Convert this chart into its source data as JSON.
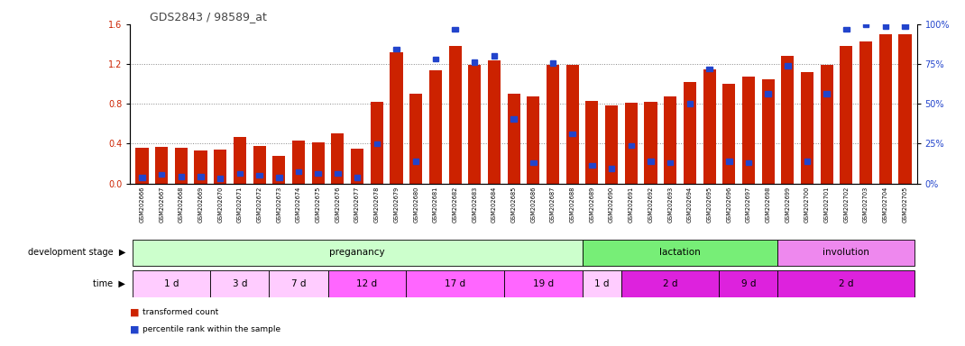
{
  "title": "GDS2843 / 98589_at",
  "samples": [
    "GSM202666",
    "GSM202667",
    "GSM202668",
    "GSM202669",
    "GSM202670",
    "GSM202671",
    "GSM202672",
    "GSM202673",
    "GSM202674",
    "GSM202675",
    "GSM202676",
    "GSM202677",
    "GSM202678",
    "GSM202679",
    "GSM202680",
    "GSM202681",
    "GSM202682",
    "GSM202683",
    "GSM202684",
    "GSM202685",
    "GSM202686",
    "GSM202687",
    "GSM202688",
    "GSM202689",
    "GSM202690",
    "GSM202691",
    "GSM202692",
    "GSM202693",
    "GSM202694",
    "GSM202695",
    "GSM202696",
    "GSM202697",
    "GSM202698",
    "GSM202699",
    "GSM202700",
    "GSM202701",
    "GSM202702",
    "GSM202703",
    "GSM202704",
    "GSM202705"
  ],
  "red_values": [
    0.36,
    0.37,
    0.36,
    0.33,
    0.34,
    0.47,
    0.38,
    0.28,
    0.43,
    0.41,
    0.5,
    0.35,
    0.82,
    1.32,
    0.9,
    1.14,
    1.38,
    1.19,
    1.24,
    0.9,
    0.87,
    1.19,
    1.19,
    0.83,
    0.78,
    0.81,
    0.82,
    0.87,
    1.02,
    1.15,
    1.0,
    1.07,
    1.05,
    1.28,
    1.12,
    1.19,
    1.38,
    1.43,
    1.5,
    1.5
  ],
  "blue_values": [
    0.06,
    0.09,
    0.07,
    0.07,
    0.05,
    0.1,
    0.08,
    0.06,
    0.12,
    0.1,
    0.1,
    0.06,
    0.4,
    1.35,
    0.22,
    1.25,
    1.55,
    1.22,
    1.28,
    0.65,
    0.21,
    1.21,
    0.5,
    0.18,
    0.15,
    0.38,
    0.22,
    0.21,
    0.8,
    1.15,
    0.22,
    0.21,
    0.9,
    1.18,
    0.22,
    0.9,
    1.55,
    1.6,
    1.58,
    1.58
  ],
  "stage_groups": [
    {
      "label": "preganancy",
      "start": 0,
      "end": 23,
      "color": "#ccffcc"
    },
    {
      "label": "lactation",
      "start": 23,
      "end": 33,
      "color": "#77ee77"
    },
    {
      "label": "involution",
      "start": 33,
      "end": 40,
      "color": "#ee88ee"
    }
  ],
  "time_groups": [
    {
      "label": "1 d",
      "start": 0,
      "end": 4,
      "color": "#ffccff"
    },
    {
      "label": "3 d",
      "start": 4,
      "end": 7,
      "color": "#ffccff"
    },
    {
      "label": "7 d",
      "start": 7,
      "end": 10,
      "color": "#ffccff"
    },
    {
      "label": "12 d",
      "start": 10,
      "end": 14,
      "color": "#ff66ff"
    },
    {
      "label": "17 d",
      "start": 14,
      "end": 19,
      "color": "#ff66ff"
    },
    {
      "label": "19 d",
      "start": 19,
      "end": 23,
      "color": "#ff66ff"
    },
    {
      "label": "1 d",
      "start": 23,
      "end": 25,
      "color": "#ffccff"
    },
    {
      "label": "2 d",
      "start": 25,
      "end": 30,
      "color": "#dd22dd"
    },
    {
      "label": "9 d",
      "start": 30,
      "end": 33,
      "color": "#dd22dd"
    },
    {
      "label": "2 d",
      "start": 33,
      "end": 40,
      "color": "#dd22dd"
    }
  ],
  "ylim": [
    0,
    1.6
  ],
  "yticks": [
    0.0,
    0.4,
    0.8,
    1.2,
    1.6
  ],
  "y2lim": [
    0,
    100
  ],
  "y2ticks": [
    0,
    25,
    50,
    75,
    100
  ],
  "bar_color": "#cc2200",
  "blue_color": "#2244cc",
  "bg_color": "#ffffff",
  "label_bg": "#dddddd",
  "title_color": "#444444",
  "grid_color": "#888888"
}
